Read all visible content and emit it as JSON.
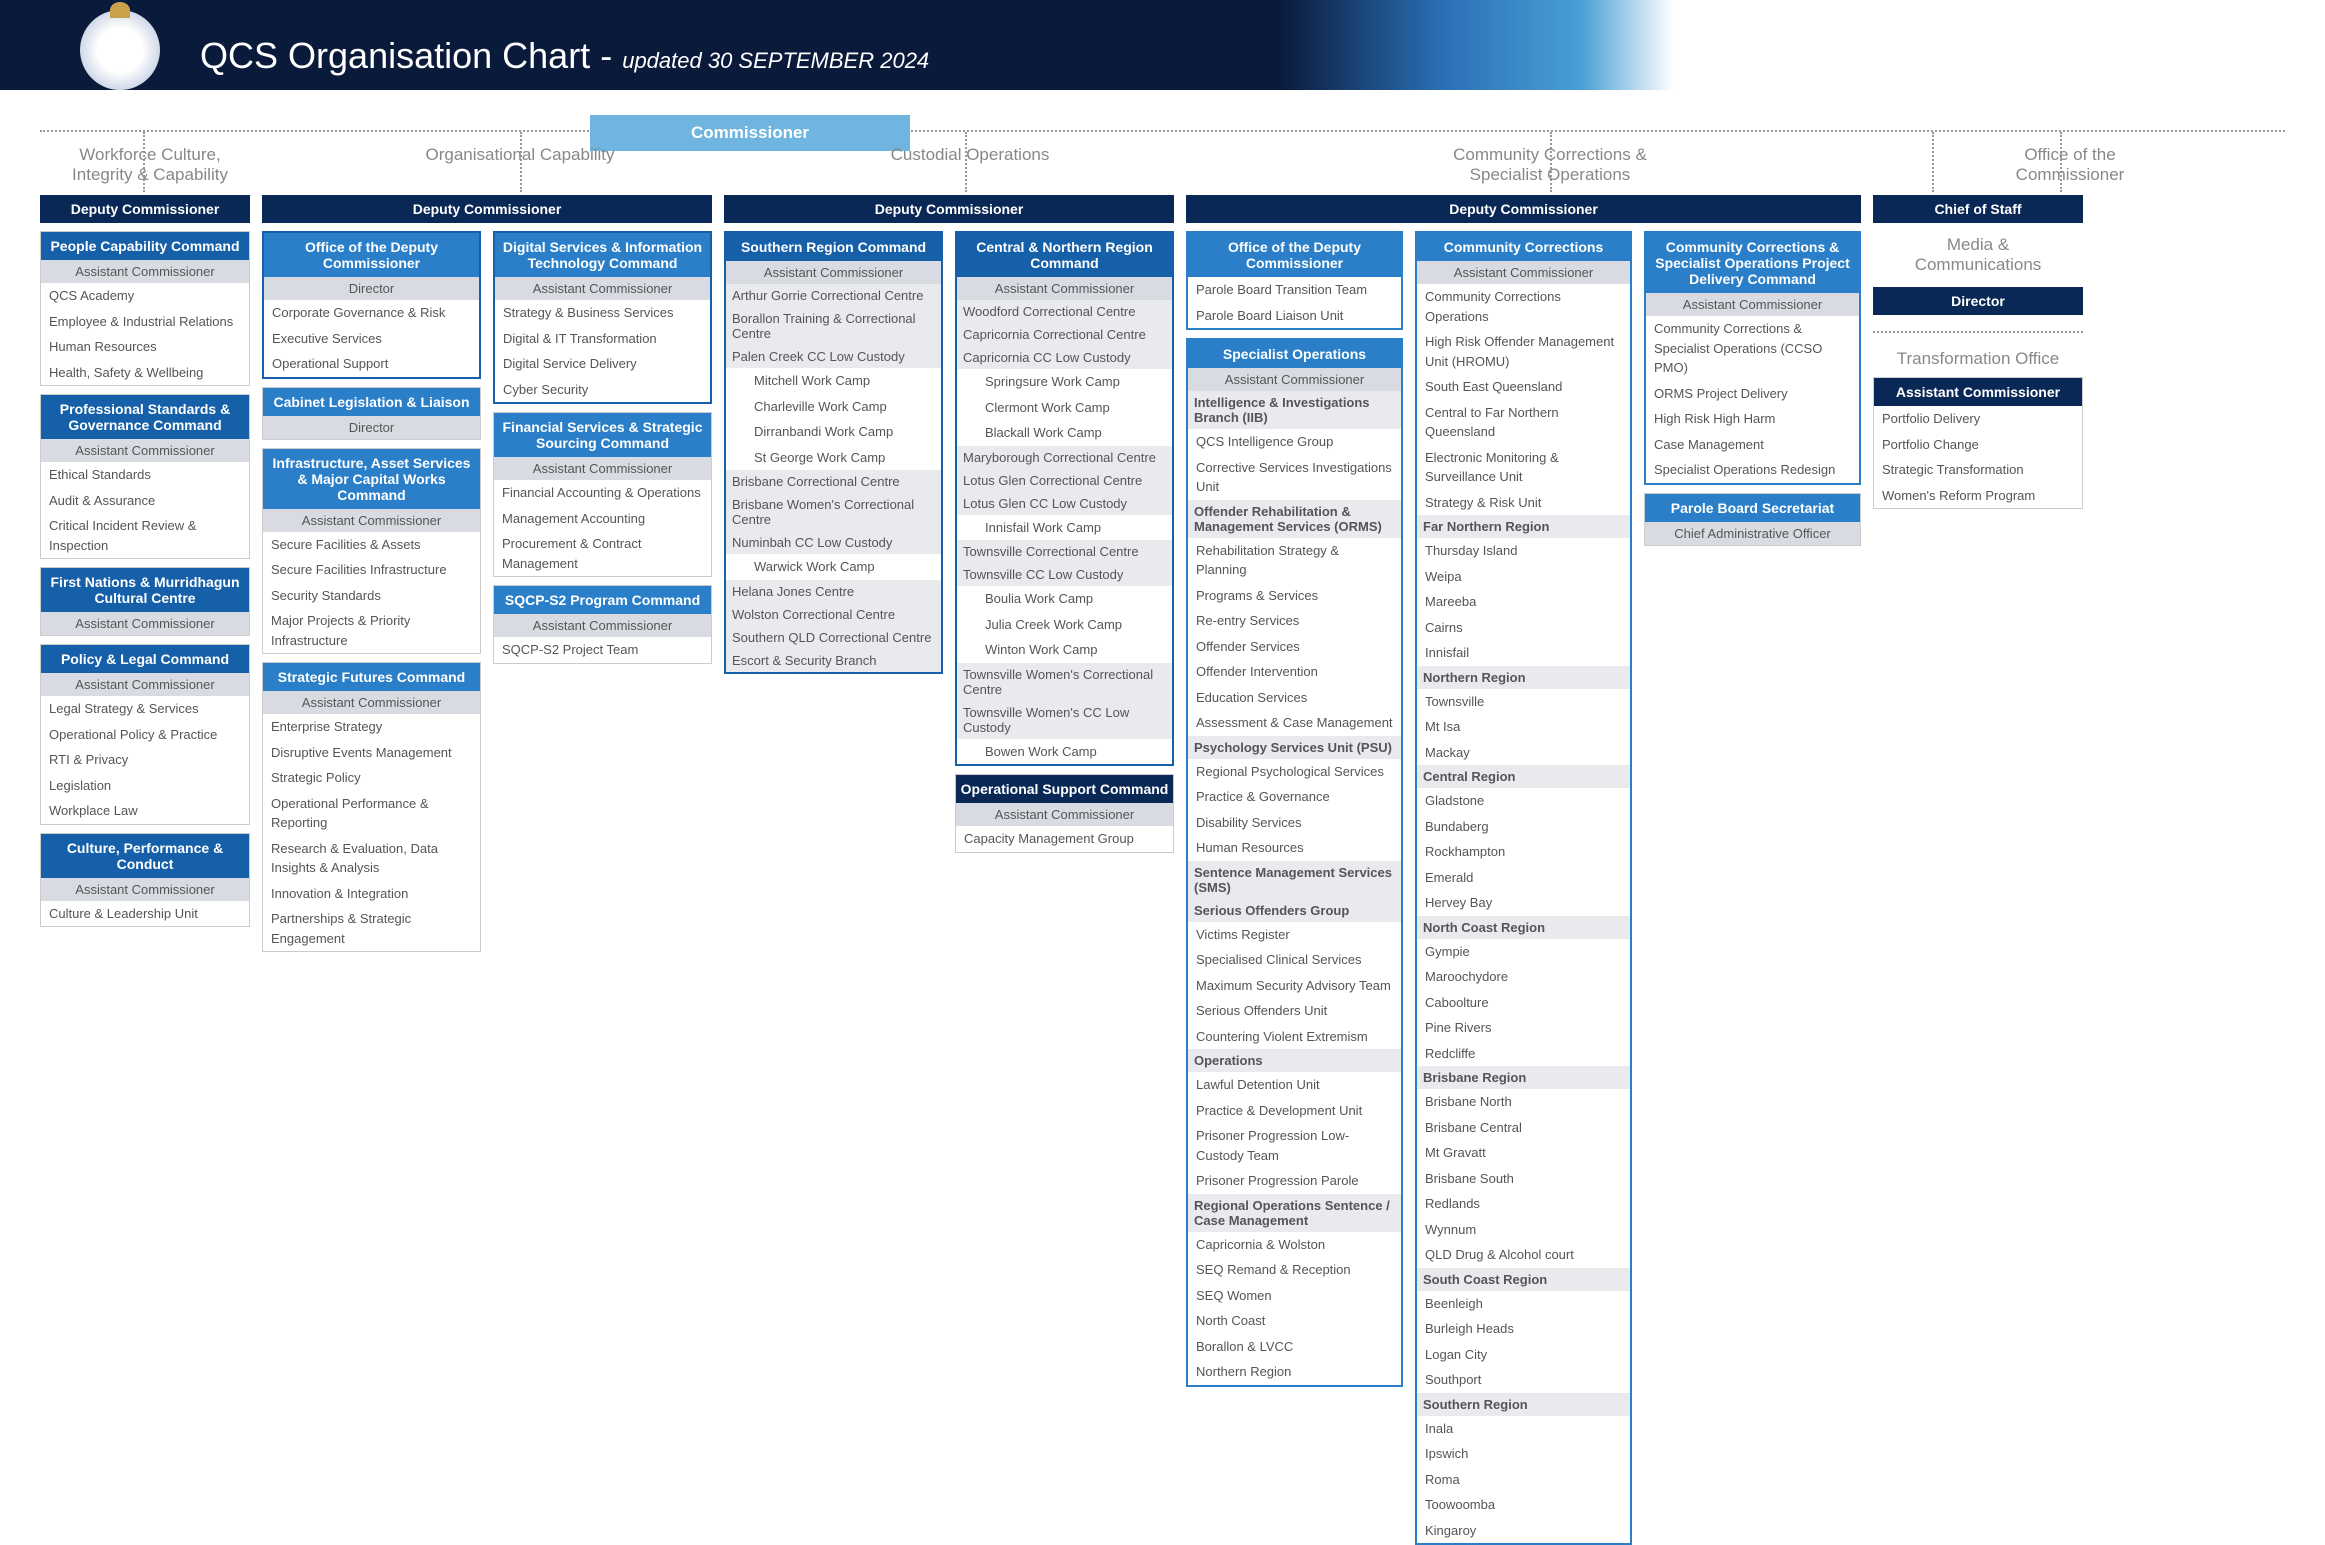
{
  "title_prefix": "QCS",
  "title_main": "Organisation Chart",
  "updated": "updated 30 SEPTEMBER 2024",
  "commissioner": "Commissioner",
  "divisions": {
    "wci": "Workforce Culture,\nIntegrity & Capability",
    "org": "Organisational Capability",
    "cust": "Custodial Operations",
    "comm": "Community Corrections &\nSpecialist Operations",
    "office": "Office of the\nCommissioner",
    "media": "Media &\nCommunications",
    "trans": "Transformation Office"
  },
  "deputy": "Deputy Commissioner",
  "asst": "Assistant Commissioner",
  "director": "Director",
  "chief_staff": "Chief of Staff",
  "cao": "Chief Administrative Officer",
  "c1": {
    "people": {
      "h": "People Capability Command",
      "items": [
        "QCS Academy",
        "Employee & Industrial Relations",
        "Human Resources",
        "Health, Safety & Wellbeing"
      ]
    },
    "prof": {
      "h": "Professional Standards & Governance Command",
      "items": [
        "Ethical Standards",
        "Audit & Assurance",
        "Critical Incident Review & Inspection"
      ]
    },
    "first": {
      "h": "First Nations & Murridhagun Cultural Centre"
    },
    "policy": {
      "h": "Policy & Legal Command",
      "items": [
        "Legal Strategy & Services",
        "Operational Policy & Practice",
        "RTI & Privacy",
        "Legislation",
        "Workplace Law"
      ]
    },
    "culture": {
      "h": "Culture, Performance & Conduct",
      "items": [
        "Culture & Leadership Unit"
      ]
    }
  },
  "c2": {
    "office": {
      "h": "Office of the Deputy Commissioner",
      "items": [
        "Corporate Governance & Risk",
        "Executive Services",
        "Operational Support"
      ]
    },
    "cabinet": {
      "h": "Cabinet Legislation & Liaison"
    },
    "infra": {
      "h": "Infrastructure, Asset Services & Major Capital Works Command",
      "items": [
        "Secure Facilities & Assets",
        "Secure Facilities Infrastructure",
        "Security Standards",
        "Major Projects & Priority Infrastructure"
      ]
    },
    "strat": {
      "h": "Strategic Futures Command",
      "items": [
        "Enterprise Strategy",
        "Disruptive Events Management",
        "Strategic Policy",
        "Operational Performance & Reporting",
        "Research & Evaluation, Data Insights & Analysis",
        "Innovation & Integration",
        "Partnerships & Strategic Engagement"
      ]
    }
  },
  "c3": {
    "dig": {
      "h": "Digital Services & Information Technology Command",
      "items": [
        "Strategy & Business Services",
        "Digital & IT Transformation",
        "Digital Service Delivery",
        "Cyber Security"
      ]
    },
    "fin": {
      "h": "Financial Services & Strategic Sourcing Command",
      "items": [
        "Financial Accounting & Operations",
        "Management Accounting",
        "Procurement & Contract Management"
      ]
    },
    "sqcp": {
      "h": "SQCP-S2 Program Command",
      "items": [
        "SQCP-S2 Project Team"
      ]
    }
  },
  "c4": {
    "south": {
      "h": "Southern Region Command",
      "items": [
        "Arthur Gorrie Correctional Centre",
        "Borallon Training & Correctional Centre",
        "Palen Creek CC Low Custody",
        "   Mitchell Work Camp",
        "   Charleville Work Camp",
        "   Dirranbandi Work Camp",
        "   St George Work Camp",
        "Brisbane Correctional Centre",
        "Brisbane Women's Correctional Centre",
        "Numinbah CC Low Custody",
        "   Warwick Work Camp",
        "Helana Jones Centre",
        "Wolston Correctional Centre",
        "Southern QLD Correctional Centre",
        "Escort & Security Branch"
      ]
    }
  },
  "c5": {
    "cnorth": {
      "h": "Central & Northern Region Command",
      "items": [
        "Woodford Correctional Centre",
        "Capricornia Correctional Centre",
        "Capricornia CC Low Custody",
        "   Springsure Work Camp",
        "   Clermont Work Camp",
        "   Blackall Work Camp",
        "Maryborough Correctional Centre",
        "Lotus Glen Correctional Centre",
        "Lotus Glen CC Low Custody",
        "   Innisfail Work Camp",
        "Townsville Correctional Centre",
        "Townsville CC Low Custody",
        "   Boulia Work Camp",
        "   Julia Creek Work Camp",
        "   Winton Work Camp",
        "Townsville Women's Correctional Centre",
        "Townsville Women's CC Low Custody",
        "   Bowen Work Camp"
      ]
    },
    "opsup": {
      "h": "Operational Support Command",
      "items": [
        "Capacity Management Group"
      ]
    }
  },
  "c6": {
    "office": {
      "h": "Office of the Deputy Commissioner",
      "items": [
        "Parole Board Transition Team",
        "Parole Board Liaison Unit"
      ]
    },
    "spec": {
      "h": "Specialist Operations",
      "groups": [
        {
          "g": "Intelligence & Investigations Branch (IIB)",
          "items": [
            "QCS Intelligence Group",
            "Corrective Services Investigations Unit"
          ]
        },
        {
          "g": "Offender Rehabilitation & Management Services (ORMS)",
          "items": [
            "Rehabilitation Strategy & Planning",
            "Programs & Services",
            "Re-entry Services",
            "Offender Services",
            "Offender Intervention",
            "Education Services",
            "Assessment & Case Management"
          ]
        },
        {
          "g": "Psychology Services Unit (PSU)",
          "items": [
            "Regional Psychological Services",
            "Practice & Governance",
            "Disability Services",
            "Human Resources"
          ]
        },
        {
          "g": "Sentence Management Services (SMS)",
          "items": []
        },
        {
          "g": "Serious Offenders Group",
          "items": [
            "Victims Register",
            "Specialised Clinical Services",
            "Maximum Security Advisory Team",
            "Serious Offenders Unit",
            "Countering Violent Extremism"
          ]
        },
        {
          "g": "Operations",
          "items": [
            "Lawful Detention Unit",
            "Practice & Development Unit",
            "Prisoner Progression Low-Custody Team",
            "Prisoner Progression Parole"
          ]
        },
        {
          "g": "Regional Operations Sentence / Case Management",
          "items": [
            "Capricornia & Wolston",
            "SEQ Remand & Reception",
            "SEQ Women",
            "North Coast",
            "Borallon & LVCC",
            "Northern Region"
          ]
        }
      ]
    }
  },
  "c7": {
    "comm": {
      "h": "Community Corrections",
      "items": [
        "Community Corrections Operations",
        "High Risk Offender Management Unit (HROMU)",
        "South East Queensland",
        "Central to Far Northern Queensland",
        "Electronic Monitoring & Surveillance Unit",
        "Strategy & Risk Unit"
      ],
      "regions": [
        {
          "g": "Far Northern Region",
          "items": [
            "Thursday Island",
            "Weipa",
            "Mareeba",
            "Cairns",
            "Innisfail"
          ]
        },
        {
          "g": "Northern Region",
          "items": [
            "Townsville",
            "Mt Isa",
            "Mackay"
          ]
        },
        {
          "g": "Central Region",
          "items": [
            "Gladstone",
            "Bundaberg",
            "Rockhampton",
            "Emerald",
            "Hervey Bay"
          ]
        },
        {
          "g": "North Coast Region",
          "items": [
            "Gympie",
            "Maroochydore",
            "Caboolture",
            "Pine Rivers",
            "Redcliffe"
          ]
        },
        {
          "g": "Brisbane Region",
          "items": [
            "Brisbane North",
            "Brisbane Central",
            "Mt Gravatt",
            "Brisbane South",
            "Redlands",
            "Wynnum",
            "QLD Drug & Alcohol court"
          ]
        },
        {
          "g": "South Coast Region",
          "items": [
            "Beenleigh",
            "Burleigh Heads",
            "Logan City",
            "Southport"
          ]
        },
        {
          "g": "Southern Region",
          "items": [
            "Inala",
            "Ipswich",
            "Roma",
            "Toowoomba",
            "Kingaroy"
          ]
        }
      ]
    }
  },
  "c8": {
    "proj": {
      "h": "Community Corrections & Specialist Operations Project Delivery Command",
      "items": [
        "Community Corrections & Specialist Operations (CCSO PMO)",
        "ORMS Project Delivery",
        "High Risk High Harm",
        "Case Management",
        "Specialist Operations Redesign"
      ]
    },
    "parole": {
      "h": "Parole Board Secretariat"
    }
  },
  "c9": {
    "trans": {
      "items": [
        "Portfolio Delivery",
        "Portfolio Change",
        "Strategic Transformation",
        "Women's Reform Program"
      ]
    }
  }
}
